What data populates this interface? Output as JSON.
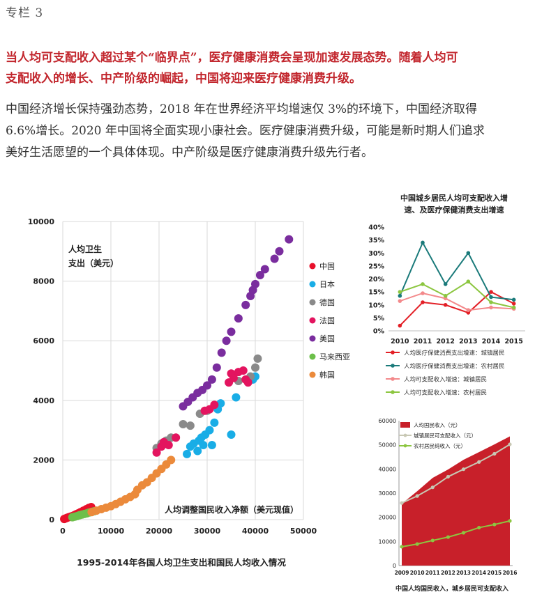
{
  "column_label": "专栏 3",
  "highlight_lines": [
    "当人均可支配收入超过某个“临界点”，医疗健康消费会呈现加速发展态势。随着人均可",
    "支配收入的增长、中产阶级的崛起，中国将迎来医疗健康消费升级。"
  ],
  "body_lines": [
    "中国经济增长保持强劲态势，2018 年在世界经济平均增速仅 3%的环境下，中国经济取得",
    "6.6%增长。2020 年中国将全面实现小康社会。医疗健康消费升级，可能是新时期人们追求",
    "美好生活愿望的一个具体体现。中产阶级是医疗健康消费升级先行者。"
  ],
  "chart_data": [
    {
      "type": "scatter",
      "title": "1995-2014年各国人均卫生支出和国民人均收入情况",
      "xlabel": "人均调整国民收入净额（美元现值）",
      "ylabel": "人均卫生支出（美元）",
      "ylabel_lines": [
        "人均卫生",
        "支出（美元）"
      ],
      "xlim": [
        0,
        50000
      ],
      "ylim": [
        0,
        10000
      ],
      "xticks": [
        0,
        10000,
        20000,
        30000,
        40000,
        50000
      ],
      "yticks": [
        0,
        2000,
        4000,
        6000,
        8000,
        10000
      ],
      "legend_position": "right",
      "series": [
        {
          "name": "中国",
          "color": "#e8102b",
          "points": [
            [
              300,
              20
            ],
            [
              600,
              40
            ],
            [
              900,
              60
            ],
            [
              1200,
              80
            ],
            [
              1600,
              100
            ],
            [
              2000,
              120
            ],
            [
              2400,
              150
            ],
            [
              2800,
              180
            ],
            [
              3200,
              210
            ],
            [
              3700,
              250
            ],
            [
              4300,
              300
            ],
            [
              4900,
              350
            ],
            [
              5400,
              390
            ],
            [
              5900,
              420
            ]
          ]
        },
        {
          "name": "日本",
          "color": "#19ade6",
          "points": [
            [
              25800,
              2200
            ],
            [
              26500,
              2450
            ],
            [
              27200,
              2550
            ],
            [
              28000,
              2300
            ],
            [
              28300,
              2650
            ],
            [
              28800,
              2750
            ],
            [
              29200,
              2500
            ],
            [
              29600,
              2850
            ],
            [
              30500,
              3000
            ],
            [
              31000,
              2500
            ],
            [
              31500,
              3250
            ],
            [
              32200,
              3700
            ],
            [
              32800,
              3900
            ],
            [
              35000,
              2850
            ],
            [
              36000,
              4100
            ],
            [
              39500,
              4700
            ],
            [
              40000,
              4800
            ]
          ]
        },
        {
          "name": "德国",
          "color": "#8a8a8a",
          "points": [
            [
              19500,
              2400
            ],
            [
              20500,
              2550
            ],
            [
              21500,
              2650
            ],
            [
              22500,
              2750
            ],
            [
              25000,
              3200
            ],
            [
              26500,
              3150
            ],
            [
              28500,
              3550
            ],
            [
              30000,
              3650
            ],
            [
              36500,
              4650
            ],
            [
              39000,
              4800
            ],
            [
              40000,
              5100
            ],
            [
              40500,
              5400
            ]
          ]
        },
        {
          "name": "法国",
          "color": "#e3145f",
          "points": [
            [
              19500,
              2250
            ],
            [
              20500,
              2450
            ],
            [
              21000,
              2600
            ],
            [
              22000,
              2500
            ],
            [
              23500,
              2750
            ],
            [
              29500,
              3650
            ],
            [
              30500,
              3700
            ],
            [
              31500,
              3850
            ],
            [
              34500,
              4600
            ],
            [
              35000,
              4900
            ],
            [
              35500,
              4750
            ],
            [
              36500,
              4950
            ],
            [
              37500,
              5000
            ],
            [
              38000,
              4700
            ],
            [
              38500,
              4600
            ]
          ]
        },
        {
          "name": "美国",
          "color": "#7a2d9e",
          "points": [
            [
              25000,
              3800
            ],
            [
              26000,
              3950
            ],
            [
              27000,
              4100
            ],
            [
              28000,
              4250
            ],
            [
              29000,
              4350
            ],
            [
              30000,
              4500
            ],
            [
              31000,
              4700
            ],
            [
              32000,
              5100
            ],
            [
              33000,
              5600
            ],
            [
              34000,
              6000
            ],
            [
              35000,
              6300
            ],
            [
              36500,
              6750
            ],
            [
              38000,
              7200
            ],
            [
              39000,
              7500
            ],
            [
              39500,
              7700
            ],
            [
              40000,
              7900
            ],
            [
              41000,
              8200
            ],
            [
              42000,
              8400
            ],
            [
              44000,
              8750
            ],
            [
              45000,
              9000
            ],
            [
              47000,
              9400
            ]
          ]
        },
        {
          "name": "马来西亚",
          "color": "#6cbf4a",
          "points": [
            [
              2000,
              80
            ],
            [
              2500,
              100
            ],
            [
              3000,
              120
            ],
            [
              3500,
              150
            ],
            [
              4000,
              170
            ],
            [
              4500,
              190
            ],
            [
              5000,
              210
            ],
            [
              5500,
              240
            ],
            [
              6000,
              260
            ],
            [
              6500,
              280
            ]
          ]
        },
        {
          "name": "韩国",
          "color": "#eb8a3b",
          "points": [
            [
              6000,
              250
            ],
            [
              7000,
              300
            ],
            [
              8000,
              350
            ],
            [
              9000,
              400
            ],
            [
              10000,
              450
            ],
            [
              11000,
              520
            ],
            [
              12000,
              600
            ],
            [
              13000,
              680
            ],
            [
              14000,
              760
            ],
            [
              15000,
              850
            ],
            [
              15500,
              1000
            ],
            [
              16500,
              1150
            ],
            [
              17500,
              1250
            ],
            [
              18500,
              1400
            ],
            [
              19500,
              1550
            ],
            [
              20500,
              1700
            ],
            [
              21500,
              1850
            ],
            [
              22500,
              2000
            ]
          ]
        }
      ]
    },
    {
      "type": "line",
      "title": "中国城乡居民人均可支配收入增速、及医疗保健消费支出增速",
      "title_lines": [
        "中国城乡居民人均可支配收入增",
        "速、及医疗保健消费支出增速"
      ],
      "categories": [
        "2010",
        "2011",
        "2012",
        "2013",
        "2014",
        "2015"
      ],
      "ylim": [
        0,
        40
      ],
      "yticks": [
        "0%",
        "5%",
        "10%",
        "15%",
        "20%",
        "25%",
        "30%",
        "35%",
        "40%"
      ],
      "legend_position": "bottom",
      "series": [
        {
          "name": "人均医疗保健消费支出增速：城镇居民",
          "color": "#e31f26",
          "values": [
            2,
            11,
            10,
            7,
            15,
            10.5
          ]
        },
        {
          "name": "人均医疗保健消费支出增速：农村居民",
          "color": "#1a7a7a",
          "values": [
            13.5,
            34,
            18,
            30,
            13,
            12
          ]
        },
        {
          "name": "人均可支配收入增速：城镇居民",
          "color": "#f3898b",
          "values": [
            11.5,
            14.5,
            12.5,
            8,
            9,
            8.5
          ]
        },
        {
          "name": "人均可支配收入增速：农村居民",
          "color": "#8cc640",
          "values": [
            15,
            18,
            13.5,
            19,
            11,
            9
          ]
        }
      ]
    },
    {
      "type": "area",
      "title": "中国人均国民收入，城乡居民可支配收入",
      "categories": [
        "2009",
        "2010",
        "2011",
        "2012",
        "2013",
        "2014",
        "2015",
        "2016"
      ],
      "ylim": [
        0,
        60000
      ],
      "yticks": [
        0,
        10000,
        20000,
        30000,
        40000,
        50000,
        60000
      ],
      "legend_position": "top-left",
      "series": [
        {
          "name": "人均国民收入（元）",
          "color": "#c8202a",
          "values": [
            25600,
            30800,
            36300,
            39800,
            43800,
            47000,
            50200,
            53500
          ]
        },
        {
          "name": "城镇居民可支配收入（元）",
          "color": "#c8c8b4",
          "values": [
            25900,
            28800,
            32400,
            36800,
            39900,
            42900,
            46300,
            50200
          ]
        },
        {
          "name": "农村居民纯收入（元）",
          "color": "#8cc640",
          "values": [
            7800,
            8900,
            10400,
            11800,
            13600,
            15700,
            17000,
            18500
          ]
        }
      ]
    }
  ]
}
